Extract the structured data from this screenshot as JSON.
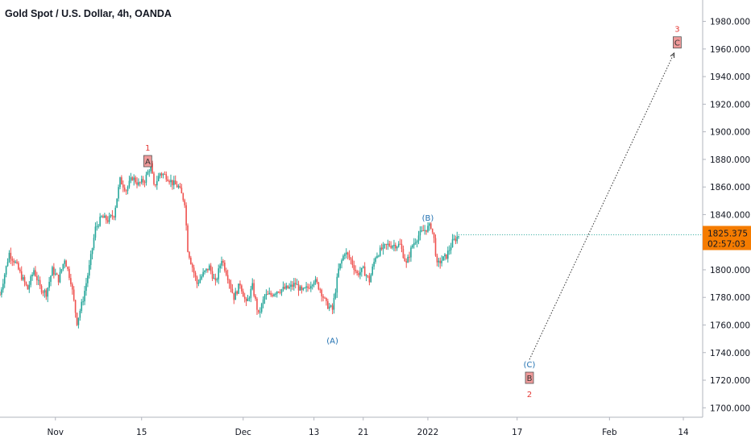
{
  "title": "Gold Spot / U.S. Dollar, 4h, OANDA",
  "colors": {
    "up": "#26a69a",
    "down": "#ef5350",
    "primary_wave": "#e53935",
    "corrective_wave": "#1e6fb0",
    "price_tag": "#f57c00",
    "label_box": "#ef9a9a"
  },
  "price_tag": {
    "price": "1825.375",
    "countdown": "02:57:03"
  },
  "chart_data": {
    "type": "candlestick",
    "ylim": [
      1692,
      1992
    ],
    "y_ticks": [
      "1980.000",
      "1960.000",
      "1940.000",
      "1920.000",
      "1900.000",
      "1880.000",
      "1860.000",
      "1840.000",
      "1820.000",
      "1800.000",
      "1780.000",
      "1760.000",
      "1740.000",
      "1720.000",
      "1700.000"
    ],
    "y_tick_values": [
      1980,
      1960,
      1940,
      1920,
      1900,
      1880,
      1860,
      1840,
      1820,
      1800,
      1780,
      1760,
      1740,
      1720,
      1700
    ],
    "x_ticks": [
      {
        "label": "Nov",
        "bar": 18
      },
      {
        "label": "15",
        "bar": 46
      },
      {
        "label": "Dec",
        "bar": 79
      },
      {
        "label": "13",
        "bar": 102
      },
      {
        "label": "21",
        "bar": 118
      },
      {
        "label": "2022",
        "bar": 139
      },
      {
        "label": "17",
        "bar": 168
      },
      {
        "label": "Feb",
        "bar": 198
      },
      {
        "label": "14",
        "bar": 222
      }
    ],
    "path_points": [
      [
        0,
        1782
      ],
      [
        3,
        1812
      ],
      [
        5,
        1805
      ],
      [
        7,
        1795
      ],
      [
        9,
        1786
      ],
      [
        11,
        1800
      ],
      [
        13,
        1787
      ],
      [
        15,
        1783
      ],
      [
        17,
        1800
      ],
      [
        19,
        1793
      ],
      [
        21,
        1808
      ],
      [
        23,
        1792
      ],
      [
        25,
        1762
      ],
      [
        27,
        1779
      ],
      [
        29,
        1802
      ],
      [
        31,
        1830
      ],
      [
        33,
        1838
      ],
      [
        35,
        1836
      ],
      [
        37,
        1840
      ],
      [
        39,
        1865
      ],
      [
        41,
        1858
      ],
      [
        43,
        1867
      ],
      [
        45,
        1862
      ],
      [
        47,
        1865
      ],
      [
        49,
        1876
      ],
      [
        50,
        1860
      ],
      [
        52,
        1870
      ],
      [
        54,
        1868
      ],
      [
        56,
        1863
      ],
      [
        58,
        1860
      ],
      [
        60,
        1849
      ],
      [
        61,
        1815
      ],
      [
        62,
        1806
      ],
      [
        64,
        1790
      ],
      [
        66,
        1797
      ],
      [
        68,
        1802
      ],
      [
        70,
        1790
      ],
      [
        72,
        1808
      ],
      [
        74,
        1795
      ],
      [
        76,
        1780
      ],
      [
        78,
        1790
      ],
      [
        80,
        1775
      ],
      [
        82,
        1788
      ],
      [
        84,
        1767
      ],
      [
        86,
        1781
      ],
      [
        88,
        1782
      ],
      [
        90,
        1785
      ],
      [
        92,
        1786
      ],
      [
        94,
        1787
      ],
      [
        96,
        1790
      ],
      [
        98,
        1784
      ],
      [
        100,
        1787
      ],
      [
        102,
        1793
      ],
      [
        104,
        1786
      ],
      [
        106,
        1775
      ],
      [
        108,
        1771
      ],
      [
        110,
        1800
      ],
      [
        112,
        1813
      ],
      [
        114,
        1807
      ],
      [
        116,
        1797
      ],
      [
        118,
        1800
      ],
      [
        120,
        1792
      ],
      [
        122,
        1810
      ],
      [
        124,
        1815
      ],
      [
        126,
        1818
      ],
      [
        128,
        1818
      ],
      [
        130,
        1818
      ],
      [
        132,
        1804
      ],
      [
        134,
        1818
      ],
      [
        136,
        1825
      ],
      [
        138,
        1829
      ],
      [
        140,
        1832
      ],
      [
        141,
        1822
      ],
      [
        142,
        1803
      ],
      [
        143,
        1806
      ],
      [
        145,
        1810
      ],
      [
        147,
        1820
      ],
      [
        149,
        1825
      ]
    ],
    "wave_labels": [
      {
        "text": "1",
        "type": "primary",
        "bar": 48,
        "price": 1877,
        "box": "A"
      },
      {
        "text": "(B)",
        "type": "corrective",
        "bar": 139,
        "price": 1832
      },
      {
        "text": "(A)",
        "type": "corrective",
        "bar": 108,
        "price": 1757
      },
      {
        "text": "(C)",
        "type": "corrective",
        "bar": 172,
        "price": 1720
      },
      {
        "text": "2",
        "type": "primary",
        "bar": 172,
        "price": 1720,
        "box": "B"
      },
      {
        "text": "3",
        "type": "primary",
        "bar": 220,
        "price": 1963,
        "box": "C"
      }
    ],
    "projection": {
      "from": [
        172,
        1735
      ],
      "to": [
        219,
        1957
      ]
    }
  }
}
